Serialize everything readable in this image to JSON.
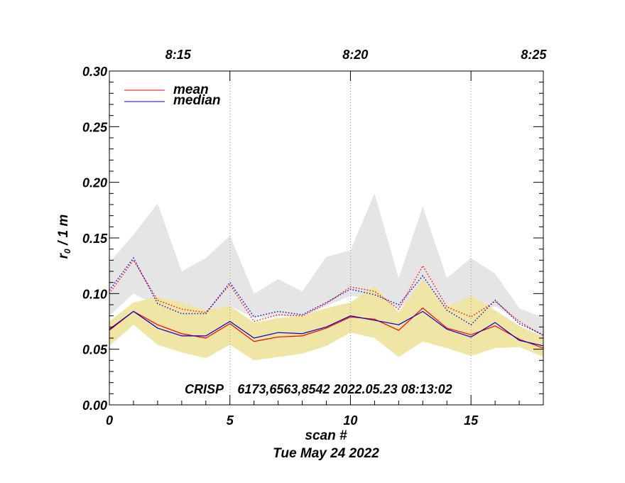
{
  "chart_data": {
    "type": "line",
    "ylabel": "r₀ / 1 m",
    "xlabel": "scan #",
    "footer": "Tue May 24 2022",
    "annotation": "CRISP    6173,6563,8542 2022.05.23 08:13:02",
    "xlim": [
      0,
      18
    ],
    "ylim": [
      0.0,
      0.3
    ],
    "x_ticks": [
      "0",
      "5",
      "10",
      "15"
    ],
    "x_tick_values": [
      0,
      5,
      10,
      15
    ],
    "y_ticks": [
      "0.00",
      "0.05",
      "0.10",
      "0.15",
      "0.20",
      "0.25",
      "0.30"
    ],
    "y_tick_values": [
      0.0,
      0.05,
      0.1,
      0.15,
      0.2,
      0.25,
      0.3
    ],
    "top_axis": {
      "labels": [
        "8:15",
        "8:20",
        "8:25"
      ],
      "scan_positions": [
        5,
        10,
        15
      ],
      "label_positions": [
        2.85,
        10.2,
        17.6
      ]
    },
    "x": [
      0,
      1,
      2,
      3,
      4,
      5,
      6,
      7,
      8,
      9,
      10,
      11,
      12,
      13,
      14,
      15,
      16,
      17,
      18
    ],
    "series": [
      {
        "name": "mean",
        "color": "#ff0000",
        "style": "solid",
        "values": [
          0.067,
          0.084,
          0.072,
          0.064,
          0.06,
          0.073,
          0.057,
          0.061,
          0.062,
          0.069,
          0.079,
          0.077,
          0.067,
          0.087,
          0.069,
          0.063,
          0.071,
          0.059,
          0.051
        ]
      },
      {
        "name": "median",
        "color": "#0000cc",
        "style": "solid",
        "values": [
          0.068,
          0.084,
          0.069,
          0.062,
          0.062,
          0.075,
          0.06,
          0.065,
          0.064,
          0.07,
          0.08,
          0.076,
          0.072,
          0.084,
          0.068,
          0.061,
          0.074,
          0.058,
          0.053
        ]
      },
      {
        "color": "#ff0000",
        "style": "dotted",
        "values": [
          0.1,
          0.13,
          0.094,
          0.086,
          0.083,
          0.108,
          0.075,
          0.081,
          0.08,
          0.091,
          0.106,
          0.102,
          0.086,
          0.125,
          0.088,
          0.079,
          0.093,
          0.075,
          0.062
        ]
      },
      {
        "color": "#0000cc",
        "style": "dotted",
        "values": [
          0.103,
          0.132,
          0.091,
          0.082,
          0.082,
          0.11,
          0.079,
          0.084,
          0.081,
          0.092,
          0.104,
          0.099,
          0.09,
          0.116,
          0.085,
          0.072,
          0.094,
          0.073,
          0.063
        ]
      }
    ],
    "bands": [
      {
        "color": "#e5e5e5",
        "upper": [
          0.128,
          0.153,
          0.181,
          0.12,
          0.132,
          0.152,
          0.1,
          0.113,
          0.102,
          0.133,
          0.139,
          0.19,
          0.114,
          0.178,
          0.114,
          0.132,
          0.118,
          0.087,
          0.078
        ],
        "lower": [
          0.08,
          0.1,
          0.089,
          0.084,
          0.082,
          0.089,
          0.078,
          0.08,
          0.079,
          0.089,
          0.098,
          0.095,
          0.087,
          0.103,
          0.086,
          0.076,
          0.089,
          0.075,
          0.061
        ]
      },
      {
        "color": "#efe6a6",
        "upper": [
          0.075,
          0.092,
          0.097,
          0.092,
          0.085,
          0.089,
          0.074,
          0.078,
          0.08,
          0.087,
          0.092,
          0.107,
          0.083,
          0.113,
          0.088,
          0.098,
          0.085,
          0.071,
          0.061
        ],
        "lower": [
          0.053,
          0.072,
          0.054,
          0.047,
          0.042,
          0.054,
          0.04,
          0.043,
          0.046,
          0.053,
          0.065,
          0.06,
          0.043,
          0.057,
          0.051,
          0.044,
          0.051,
          0.052,
          0.043
        ]
      }
    ],
    "grid": "vertical dotted at top-axis time ticks",
    "legend": "top-left"
  }
}
